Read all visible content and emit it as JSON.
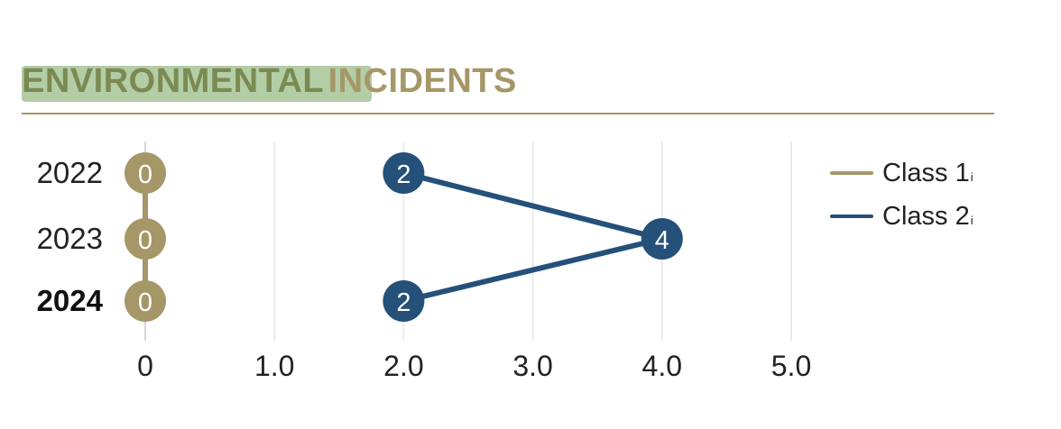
{
  "header": {
    "title_word1": "ENVIRONMENTAL",
    "title_word2": "INCIDENTS"
  },
  "colors": {
    "class1": "#a59767",
    "class2": "#24507a",
    "title_highlight": "#b3cda6",
    "grid": "#e4e4e4"
  },
  "chart_data": {
    "type": "line",
    "orientation": "horizontal",
    "categories": [
      "2022",
      "2023",
      "2024"
    ],
    "highlight_category": "2024",
    "x_ticks": [
      "0",
      "1.0",
      "2.0",
      "3.0",
      "4.0",
      "5.0"
    ],
    "xlim": [
      0,
      5
    ],
    "grid": true,
    "legend_position": "right",
    "series": [
      {
        "name": "Class 1",
        "values": [
          0,
          0,
          0
        ],
        "color": "#a59767",
        "info_marker": "i"
      },
      {
        "name": "Class 2",
        "values": [
          2,
          4,
          2
        ],
        "color": "#24507a",
        "info_marker": "i"
      }
    ]
  }
}
